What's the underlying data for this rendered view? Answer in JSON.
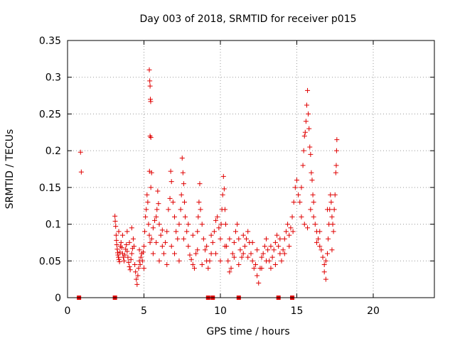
{
  "chart_data": {
    "type": "scatter",
    "title": "Day 003 of 2018, SRMTID for receiver p015",
    "xlabel": "GPS time / hours",
    "ylabel": "SRMTID / TECUs",
    "xlim": [
      0,
      24
    ],
    "ylim": [
      0,
      0.35
    ],
    "xticks": [
      0,
      5,
      10,
      15,
      20
    ],
    "xtick_labels": [
      "0",
      "5",
      "10",
      "15",
      "20"
    ],
    "yticks": [
      0,
      0.05,
      0.1,
      0.15,
      0.2,
      0.25,
      0.3,
      0.35
    ],
    "ytick_labels": [
      "0",
      "0.05",
      "0.1",
      "0.15",
      "0.2",
      "0.25",
      "0.3",
      "0.35"
    ],
    "grid": true,
    "marker_color": "#e00000",
    "series": [
      {
        "name": "SRMTID",
        "marker": "+",
        "points": [
          [
            0.85,
            0.198
          ],
          [
            0.9,
            0.171
          ],
          [
            3.1,
            0.111
          ],
          [
            3.12,
            0.104
          ],
          [
            3.15,
            0.097
          ],
          [
            3.18,
            0.085
          ],
          [
            3.2,
            0.078
          ],
          [
            3.22,
            0.072
          ],
          [
            3.25,
            0.066
          ],
          [
            3.28,
            0.061
          ],
          [
            3.3,
            0.058
          ],
          [
            3.33,
            0.055
          ],
          [
            3.36,
            0.052
          ],
          [
            3.4,
            0.049
          ],
          [
            3.43,
            0.062
          ],
          [
            3.46,
            0.07
          ],
          [
            3.5,
            0.075
          ],
          [
            3.55,
            0.068
          ],
          [
            3.6,
            0.06
          ],
          [
            3.65,
            0.055
          ],
          [
            3.7,
            0.05
          ],
          [
            3.75,
            0.058
          ],
          [
            3.8,
            0.066
          ],
          [
            3.85,
            0.072
          ],
          [
            3.9,
            0.063
          ],
          [
            3.95,
            0.055
          ],
          [
            4.0,
            0.048
          ],
          [
            4.05,
            0.042
          ],
          [
            4.1,
            0.038
          ],
          [
            4.15,
            0.052
          ],
          [
            4.2,
            0.06
          ],
          [
            4.25,
            0.067
          ],
          [
            4.3,
            0.08
          ],
          [
            4.35,
            0.07
          ],
          [
            4.4,
            0.045
          ],
          [
            4.45,
            0.035
          ],
          [
            4.5,
            0.025
          ],
          [
            4.55,
            0.018
          ],
          [
            4.6,
            0.03
          ],
          [
            4.65,
            0.04
          ],
          [
            4.7,
            0.05
          ],
          [
            4.75,
            0.045
          ],
          [
            4.8,
            0.055
          ],
          [
            4.85,
            0.06
          ],
          [
            4.9,
            0.05
          ],
          [
            4.95,
            0.062
          ],
          [
            5.0,
            0.07
          ],
          [
            5.05,
            0.09
          ],
          [
            5.1,
            0.11
          ],
          [
            5.15,
            0.12
          ],
          [
            5.2,
            0.14
          ],
          [
            5.25,
            0.13
          ],
          [
            5.3,
            0.1
          ],
          [
            5.35,
            0.085
          ],
          [
            5.4,
            0.075
          ],
          [
            3.6,
            0.085
          ],
          [
            3.9,
            0.09
          ],
          [
            4.2,
            0.095
          ],
          [
            4.7,
            0.065
          ],
          [
            5.0,
            0.04
          ],
          [
            3.35,
            0.09
          ],
          [
            4.05,
            0.075
          ],
          [
            5.35,
            0.31
          ],
          [
            5.38,
            0.295
          ],
          [
            5.4,
            0.288
          ],
          [
            5.42,
            0.27
          ],
          [
            5.44,
            0.267
          ],
          [
            5.4,
            0.22
          ],
          [
            5.45,
            0.218
          ],
          [
            5.36,
            0.172
          ],
          [
            5.5,
            0.17
          ],
          [
            5.45,
            0.15
          ],
          [
            5.5,
            0.08
          ],
          [
            5.6,
            0.095
          ],
          [
            5.7,
            0.105
          ],
          [
            5.8,
            0.11
          ],
          [
            5.85,
            0.12
          ],
          [
            5.9,
            0.145
          ],
          [
            5.95,
            0.128
          ],
          [
            6.0,
            0.1
          ],
          [
            6.1,
            0.085
          ],
          [
            6.2,
            0.07
          ],
          [
            6.3,
            0.06
          ],
          [
            6.4,
            0.075
          ],
          [
            6.5,
            0.09
          ],
          [
            6.6,
            0.12
          ],
          [
            6.7,
            0.135
          ],
          [
            6.75,
            0.172
          ],
          [
            6.8,
            0.158
          ],
          [
            6.9,
            0.13
          ],
          [
            7.0,
            0.11
          ],
          [
            7.1,
            0.09
          ],
          [
            7.2,
            0.08
          ],
          [
            7.3,
            0.1
          ],
          [
            7.4,
            0.12
          ],
          [
            7.45,
            0.14
          ],
          [
            7.5,
            0.19
          ],
          [
            7.55,
            0.17
          ],
          [
            7.6,
            0.155
          ],
          [
            7.65,
            0.13
          ],
          [
            7.7,
            0.11
          ],
          [
            7.8,
            0.09
          ],
          [
            7.9,
            0.07
          ],
          [
            8.0,
            0.058
          ],
          [
            8.1,
            0.052
          ],
          [
            8.2,
            0.045
          ],
          [
            8.3,
            0.04
          ],
          [
            8.4,
            0.06
          ],
          [
            8.5,
            0.09
          ],
          [
            8.55,
            0.11
          ],
          [
            8.6,
            0.13
          ],
          [
            8.65,
            0.155
          ],
          [
            8.7,
            0.12
          ],
          [
            8.8,
            0.1
          ],
          [
            8.9,
            0.08
          ],
          [
            9.0,
            0.065
          ],
          [
            9.1,
            0.05
          ],
          [
            9.2,
            0.04
          ],
          [
            9.3,
            0.05
          ],
          [
            9.4,
            0.06
          ],
          [
            9.5,
            0.075
          ],
          [
            9.6,
            0.09
          ],
          [
            9.7,
            0.105
          ],
          [
            9.8,
            0.11
          ],
          [
            9.9,
            0.095
          ],
          [
            10.0,
            0.08
          ],
          [
            10.05,
            0.1
          ],
          [
            10.1,
            0.12
          ],
          [
            10.15,
            0.14
          ],
          [
            10.2,
            0.165
          ],
          [
            10.25,
            0.148
          ],
          [
            10.3,
            0.12
          ],
          [
            10.35,
            0.1
          ],
          [
            10.4,
            0.07
          ],
          [
            10.5,
            0.05
          ],
          [
            10.6,
            0.035
          ],
          [
            10.7,
            0.04
          ],
          [
            10.8,
            0.06
          ],
          [
            10.9,
            0.075
          ],
          [
            11.0,
            0.09
          ],
          [
            11.1,
            0.1
          ],
          [
            11.2,
            0.08
          ],
          [
            11.3,
            0.065
          ],
          [
            11.4,
            0.055
          ],
          [
            11.5,
            0.06
          ],
          [
            11.6,
            0.07
          ],
          [
            11.7,
            0.08
          ],
          [
            11.8,
            0.09
          ],
          [
            11.9,
            0.075
          ],
          [
            12.0,
            0.06
          ],
          [
            12.1,
            0.05
          ],
          [
            12.2,
            0.04
          ],
          [
            12.3,
            0.045
          ],
          [
            12.4,
            0.03
          ],
          [
            12.5,
            0.02
          ],
          [
            12.6,
            0.04
          ],
          [
            12.7,
            0.055
          ],
          [
            12.8,
            0.06
          ],
          [
            12.9,
            0.07
          ],
          [
            13.0,
            0.08
          ],
          [
            13.1,
            0.065
          ],
          [
            13.2,
            0.05
          ],
          [
            13.3,
            0.04
          ],
          [
            13.4,
            0.055
          ],
          [
            13.5,
            0.065
          ],
          [
            13.6,
            0.075
          ],
          [
            13.7,
            0.085
          ],
          [
            13.8,
            0.07
          ],
          [
            13.9,
            0.06
          ],
          [
            14.0,
            0.05
          ],
          [
            14.1,
            0.065
          ],
          [
            14.2,
            0.08
          ],
          [
            14.3,
            0.09
          ],
          [
            14.4,
            0.1
          ],
          [
            14.5,
            0.085
          ],
          [
            14.6,
            0.095
          ],
          [
            14.7,
            0.11
          ],
          [
            14.75,
            0.09
          ],
          [
            5.6,
            0.06
          ],
          [
            5.8,
            0.075
          ],
          [
            6.0,
            0.05
          ],
          [
            6.2,
            0.092
          ],
          [
            6.5,
            0.045
          ],
          [
            6.8,
            0.07
          ],
          [
            7.0,
            0.06
          ],
          [
            7.3,
            0.05
          ],
          [
            7.6,
            0.08
          ],
          [
            7.9,
            0.1
          ],
          [
            8.2,
            0.085
          ],
          [
            8.5,
            0.065
          ],
          [
            8.8,
            0.045
          ],
          [
            9.1,
            0.07
          ],
          [
            9.4,
            0.085
          ],
          [
            9.7,
            0.06
          ],
          [
            10.0,
            0.05
          ],
          [
            10.3,
            0.07
          ],
          [
            10.6,
            0.08
          ],
          [
            10.9,
            0.055
          ],
          [
            11.2,
            0.045
          ],
          [
            11.5,
            0.085
          ],
          [
            11.8,
            0.055
          ],
          [
            12.1,
            0.075
          ],
          [
            12.4,
            0.065
          ],
          [
            12.7,
            0.04
          ],
          [
            13.0,
            0.05
          ],
          [
            13.3,
            0.07
          ],
          [
            13.6,
            0.045
          ],
          [
            13.9,
            0.08
          ],
          [
            14.2,
            0.06
          ],
          [
            14.5,
            0.07
          ],
          [
            14.8,
            0.13
          ],
          [
            14.9,
            0.15
          ],
          [
            15.0,
            0.16
          ],
          [
            15.1,
            0.14
          ],
          [
            15.2,
            0.13
          ],
          [
            15.3,
            0.15
          ],
          [
            15.4,
            0.18
          ],
          [
            15.45,
            0.2
          ],
          [
            15.5,
            0.22
          ],
          [
            15.55,
            0.225
          ],
          [
            15.6,
            0.24
          ],
          [
            15.65,
            0.262
          ],
          [
            15.7,
            0.282
          ],
          [
            15.75,
            0.25
          ],
          [
            15.8,
            0.23
          ],
          [
            15.85,
            0.205
          ],
          [
            15.9,
            0.195
          ],
          [
            15.95,
            0.17
          ],
          [
            16.0,
            0.16
          ],
          [
            16.05,
            0.14
          ],
          [
            16.1,
            0.13
          ],
          [
            15.3,
            0.11
          ],
          [
            15.5,
            0.1
          ],
          [
            15.7,
            0.095
          ],
          [
            15.9,
            0.12
          ],
          [
            16.1,
            0.11
          ],
          [
            16.2,
            0.1
          ],
          [
            16.3,
            0.09
          ],
          [
            16.4,
            0.08
          ],
          [
            16.5,
            0.07
          ],
          [
            16.6,
            0.065
          ],
          [
            16.7,
            0.055
          ],
          [
            16.8,
            0.045
          ],
          [
            16.9,
            0.05
          ],
          [
            17.0,
            0.06
          ],
          [
            17.05,
            0.08
          ],
          [
            17.1,
            0.1
          ],
          [
            17.15,
            0.12
          ],
          [
            17.2,
            0.14
          ],
          [
            17.25,
            0.13
          ],
          [
            17.3,
            0.11
          ],
          [
            17.35,
            0.1
          ],
          [
            17.4,
            0.09
          ],
          [
            17.45,
            0.12
          ],
          [
            17.5,
            0.14
          ],
          [
            17.55,
            0.17
          ],
          [
            17.6,
            0.2
          ],
          [
            17.62,
            0.215
          ],
          [
            17.58,
            0.18
          ],
          [
            16.9,
            0.025
          ],
          [
            16.8,
            0.035
          ],
          [
            16.5,
            0.09
          ],
          [
            16.3,
            0.075
          ],
          [
            17.3,
            0.065
          ],
          [
            17.0,
            0.12
          ]
        ]
      }
    ],
    "zero_markers": {
      "y": 0,
      "x": [
        0.75,
        3.1,
        9.2,
        9.5,
        11.2,
        13.8,
        14.7
      ]
    }
  }
}
